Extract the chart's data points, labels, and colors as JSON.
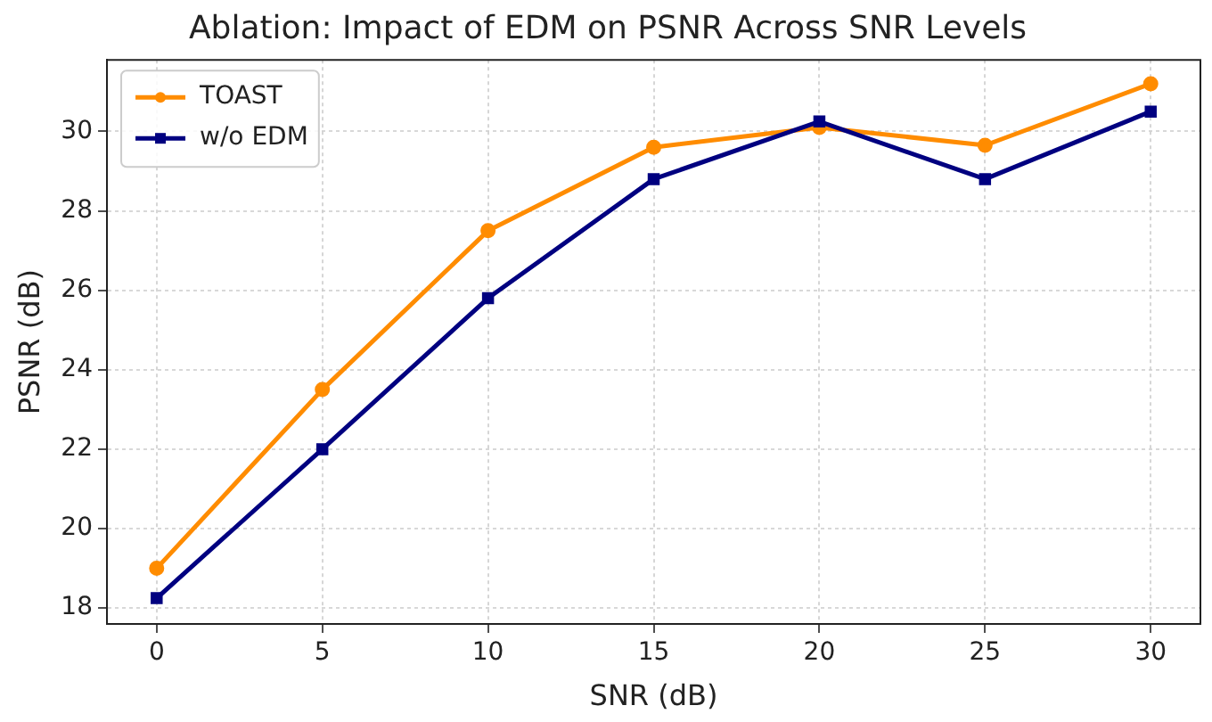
{
  "chart_data": {
    "type": "line",
    "title": "Ablation: Impact of EDM on PSNR Across SNR Levels",
    "xlabel": "SNR (dB)",
    "ylabel": "PSNR (dB)",
    "x": [
      0,
      5,
      10,
      15,
      20,
      25,
      30
    ],
    "series": [
      {
        "name": "TOAST",
        "color": "#ff8c00",
        "marker": "circle",
        "values": [
          19.0,
          23.5,
          27.5,
          29.6,
          30.1,
          29.65,
          31.2
        ]
      },
      {
        "name": "w/o EDM",
        "color": "#000080",
        "marker": "square",
        "values": [
          18.25,
          22.0,
          25.8,
          28.8,
          30.25,
          28.8,
          30.5
        ]
      }
    ],
    "xlim": [
      -1.5,
      31.5
    ],
    "ylim": [
      17.6,
      31.8
    ],
    "xticks": [
      0,
      5,
      10,
      15,
      20,
      25,
      30
    ],
    "yticks": [
      18,
      20,
      22,
      24,
      26,
      28,
      30
    ],
    "grid": true,
    "legend": "top left",
    "line_style": "solid"
  }
}
